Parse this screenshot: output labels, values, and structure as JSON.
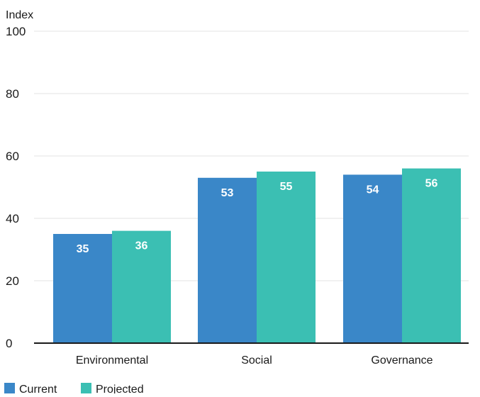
{
  "chart_data": {
    "type": "bar",
    "title": "",
    "xlabel": "",
    "ylabel": "Index",
    "ylim": [
      0,
      100
    ],
    "yticks": [
      0,
      20,
      40,
      60,
      80,
      100
    ],
    "grid": true,
    "legend_position": "bottom-left",
    "categories": [
      "Environmental",
      "Social",
      "Governance"
    ],
    "series": [
      {
        "name": "Current",
        "color": "#3a87c8",
        "values": [
          35,
          53,
          54
        ]
      },
      {
        "name": "Projected",
        "color": "#3bbfb3",
        "values": [
          36,
          55,
          56
        ]
      }
    ],
    "data_labels": [
      [
        "35",
        "53",
        "54"
      ],
      [
        "36",
        "55",
        "56"
      ]
    ]
  }
}
